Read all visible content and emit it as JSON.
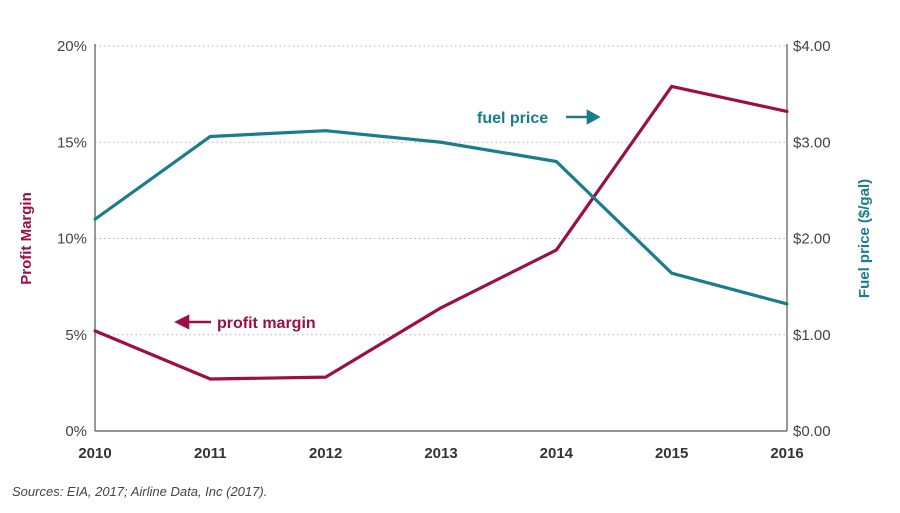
{
  "chart_data": {
    "type": "line",
    "title": "",
    "x": [
      "2010",
      "2011",
      "2012",
      "2013",
      "2014",
      "2015",
      "2016"
    ],
    "series": [
      {
        "name": "profit margin",
        "axis": "left",
        "color": "#9b0f46",
        "values": [
          5.2,
          2.7,
          2.8,
          6.4,
          9.4,
          17.9,
          16.6
        ]
      },
      {
        "name": "fuel price",
        "axis": "right",
        "color": "#1a7c8c",
        "values": [
          2.2,
          3.06,
          3.12,
          3.0,
          2.8,
          1.64,
          1.32
        ]
      }
    ],
    "y_left": {
      "label": "Profit Margin",
      "range": [
        0,
        20
      ],
      "ticks": [
        "0%",
        "5%",
        "10%",
        "15%",
        "20%"
      ],
      "tick_values": [
        0,
        5,
        10,
        15,
        20
      ],
      "color": "#9b0f46"
    },
    "y_right": {
      "label": "Fuel price ($/gal)",
      "range": [
        0,
        4
      ],
      "ticks": [
        "$0.00",
        "$1.00",
        "$2.00",
        "$3.00",
        "$4.00"
      ],
      "tick_values": [
        0,
        1,
        2,
        3,
        4
      ],
      "color": "#1a7c8c"
    },
    "grid": "horizontal dotted",
    "annotations": [
      {
        "text": "fuel price",
        "series": "fuel price",
        "arrow": "right"
      },
      {
        "text": "profit margin",
        "series": "profit margin",
        "arrow": "left"
      }
    ]
  },
  "source": "Sources:  EIA, 2017; Airline Data, Inc (2017)."
}
